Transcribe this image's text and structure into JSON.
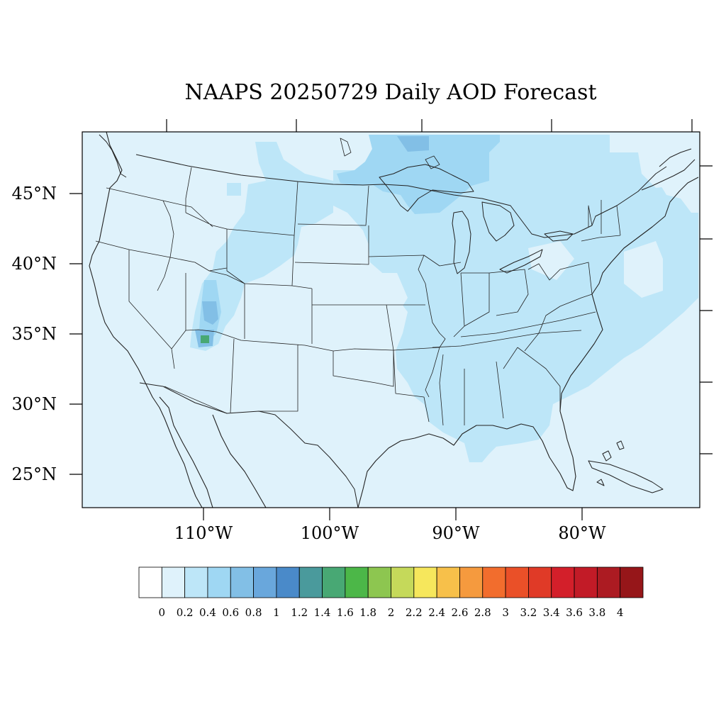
{
  "title": "NAAPS 20250729 Daily AOD Forecast",
  "latitude_labels": [
    "45°N",
    "40°N",
    "35°N",
    "30°N",
    "25°N"
  ],
  "longitude_labels": [
    "110°W",
    "100°W",
    "90°W",
    "80°W"
  ],
  "colorbar": {
    "tick_labels": [
      "0",
      "0.2",
      "0.4",
      "0.6",
      "0.8",
      "1",
      "1.2",
      "1.4",
      "1.6",
      "1.8",
      "2",
      "2.2",
      "2.4",
      "2.6",
      "2.8",
      "3",
      "3.2",
      "3.4",
      "3.6",
      "3.8",
      "4"
    ],
    "colors": [
      "#ffffff",
      "#dff2fb",
      "#bde6f8",
      "#9fd7f3",
      "#82bfe6",
      "#69a7dc",
      "#4a8ac9",
      "#4a9a9c",
      "#48a874",
      "#4cb748",
      "#8dc650",
      "#c5d95a",
      "#f6e75c",
      "#f7c04a",
      "#f59a3e",
      "#f26d2d",
      "#ea5028",
      "#e03a27",
      "#d31f2a",
      "#c21b27",
      "#ac1b22",
      "#961619"
    ]
  },
  "map": {
    "background_color": "#dff2fb",
    "level_colors": {
      "0.2-0.4": "#bde6f8",
      "0.4-0.6": "#9fd7f3",
      "0.6-0.8": "#82bfe6",
      "1.4-1.6": "#48a874"
    }
  }
}
